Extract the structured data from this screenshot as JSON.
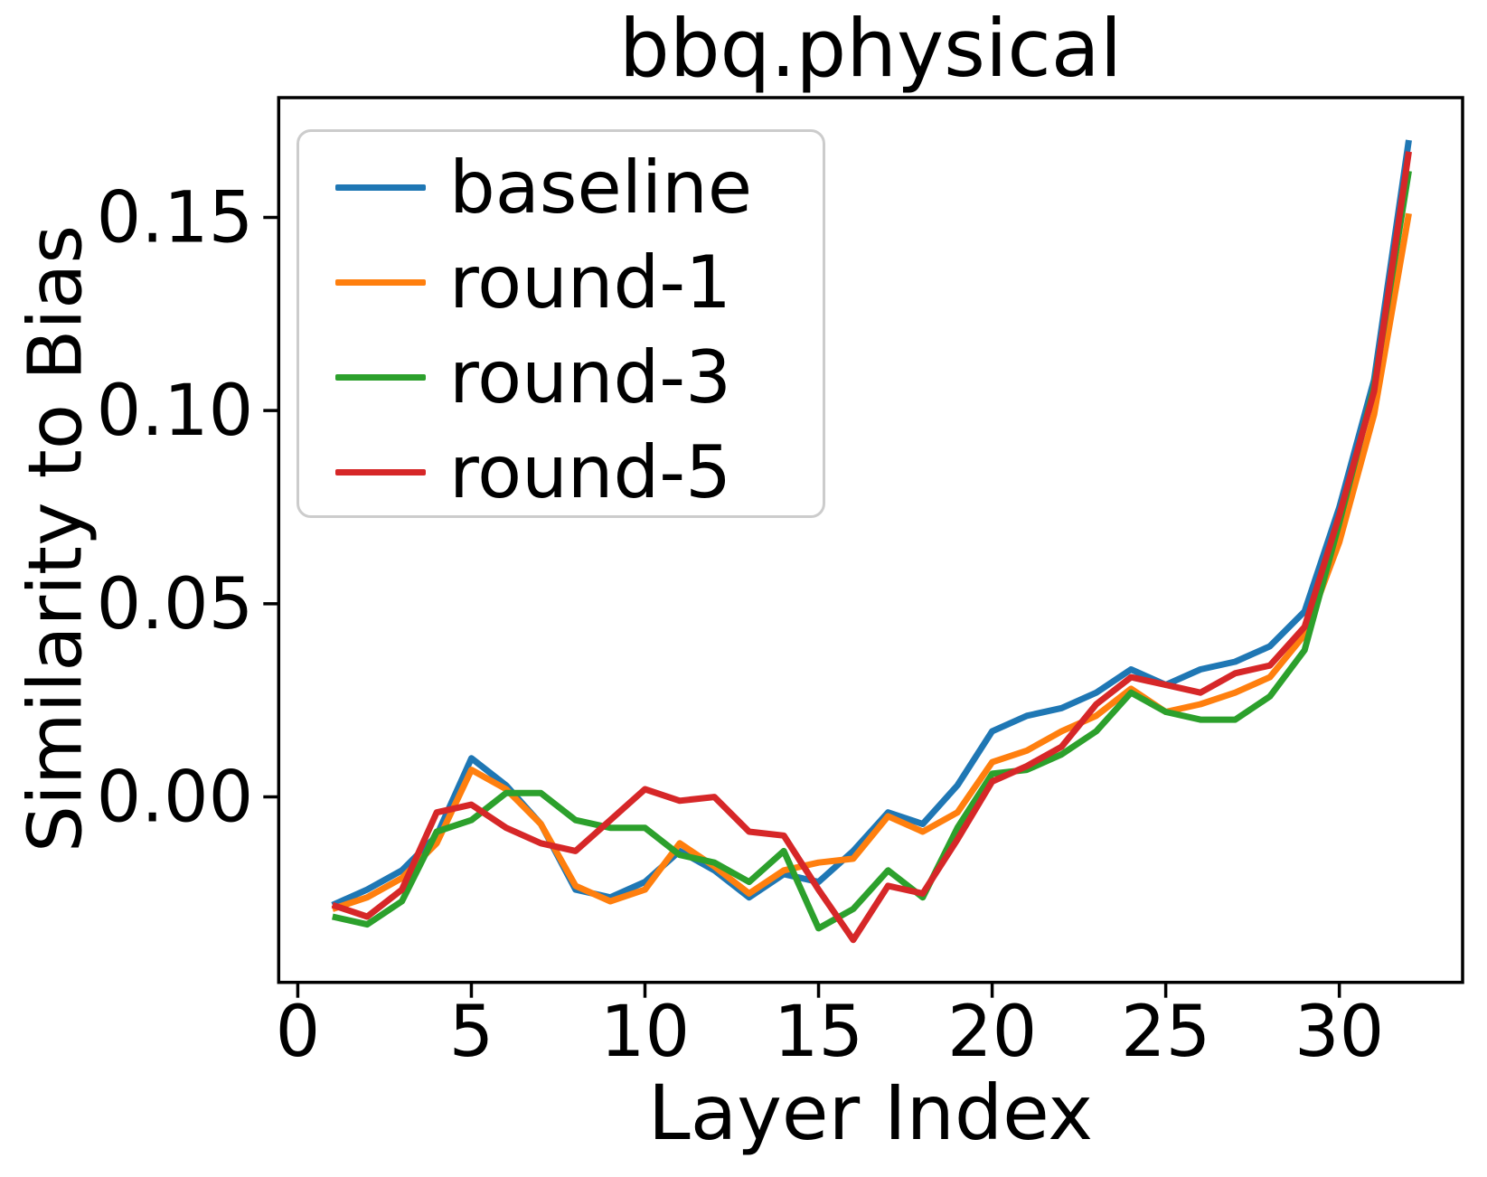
{
  "figure": {
    "title": "bbq.physical",
    "xlabel": "Layer Index",
    "ylabel": "Similarity to Bias"
  },
  "chart_data": {
    "type": "line",
    "title": "bbq.physical",
    "xlabel": "Layer Index",
    "ylabel": "Similarity to Bias",
    "xlim": [
      -0.55,
      33.55
    ],
    "ylim": [
      -0.048,
      0.181
    ],
    "xticks": {
      "values": [
        0,
        5,
        10,
        15,
        20,
        25,
        30
      ],
      "labels": [
        "0",
        "5",
        "10",
        "15",
        "20",
        "25",
        "30"
      ]
    },
    "yticks": {
      "values": [
        0.0,
        0.05,
        0.1,
        0.15
      ],
      "labels": [
        "0.00",
        "0.05",
        "0.10",
        "0.15"
      ]
    },
    "grid": false,
    "legend_position": "upper left",
    "x": [
      1,
      2,
      3,
      4,
      5,
      6,
      7,
      8,
      9,
      10,
      11,
      12,
      13,
      14,
      15,
      16,
      17,
      18,
      19,
      20,
      21,
      22,
      23,
      24,
      25,
      26,
      27,
      28,
      29,
      30,
      31,
      32
    ],
    "series": [
      {
        "name": "baseline",
        "color": "#1f77b4",
        "values": [
          -0.028,
          -0.024,
          -0.019,
          -0.01,
          0.01,
          0.003,
          -0.007,
          -0.024,
          -0.026,
          -0.022,
          -0.014,
          -0.019,
          -0.026,
          -0.02,
          -0.022,
          -0.014,
          -0.004,
          -0.007,
          0.003,
          0.017,
          0.021,
          0.023,
          0.027,
          0.033,
          0.029,
          0.033,
          0.035,
          0.039,
          0.048,
          0.075,
          0.108,
          0.17
        ]
      },
      {
        "name": "round-1",
        "color": "#ff7f0e",
        "values": [
          -0.029,
          -0.026,
          -0.021,
          -0.012,
          0.007,
          0.002,
          -0.007,
          -0.023,
          -0.027,
          -0.024,
          -0.012,
          -0.018,
          -0.025,
          -0.019,
          -0.017,
          -0.016,
          -0.005,
          -0.009,
          -0.004,
          0.009,
          0.012,
          0.017,
          0.021,
          0.028,
          0.022,
          0.024,
          0.027,
          0.031,
          0.042,
          0.066,
          0.099,
          0.151
        ]
      },
      {
        "name": "round-3",
        "color": "#2ca02c",
        "values": [
          -0.031,
          -0.033,
          -0.027,
          -0.009,
          -0.006,
          0.001,
          0.001,
          -0.006,
          -0.008,
          -0.008,
          -0.015,
          -0.017,
          -0.022,
          -0.014,
          -0.034,
          -0.029,
          -0.019,
          -0.026,
          -0.008,
          0.006,
          0.007,
          0.011,
          0.017,
          0.027,
          0.022,
          0.02,
          0.02,
          0.026,
          0.038,
          0.071,
          0.106,
          0.162
        ]
      },
      {
        "name": "round-5",
        "color": "#d62728",
        "values": [
          -0.028,
          -0.031,
          -0.024,
          -0.004,
          -0.002,
          -0.008,
          -0.012,
          -0.014,
          -0.006,
          0.002,
          -0.001,
          0.0,
          -0.009,
          -0.01,
          -0.024,
          -0.037,
          -0.023,
          -0.025,
          -0.011,
          0.004,
          0.008,
          0.013,
          0.024,
          0.031,
          0.029,
          0.027,
          0.032,
          0.034,
          0.044,
          0.073,
          0.105,
          0.167
        ]
      }
    ]
  }
}
